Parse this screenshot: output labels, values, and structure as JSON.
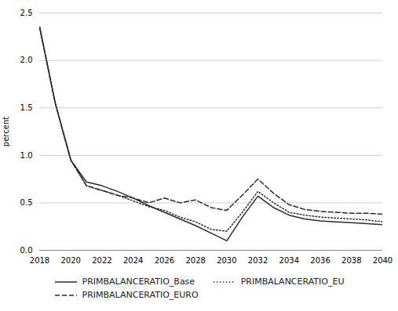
{
  "chart_data": {
    "type": "line",
    "x": [
      2018,
      2019,
      2020,
      2021,
      2022,
      2023,
      2024,
      2025,
      2026,
      2027,
      2028,
      2029,
      2030,
      2031,
      2032,
      2033,
      2034,
      2035,
      2036,
      2037,
      2038,
      2039,
      2040
    ],
    "series": [
      {
        "name": "PRIMBALANCERATIO_Base",
        "color": "#2b2b2b",
        "line_style": "solid",
        "values": [
          2.35,
          1.55,
          0.95,
          0.72,
          0.68,
          0.62,
          0.55,
          0.47,
          0.4,
          0.33,
          0.26,
          0.18,
          0.1,
          0.35,
          0.57,
          0.45,
          0.37,
          0.33,
          0.31,
          0.3,
          0.29,
          0.28,
          0.27
        ]
      },
      {
        "name": "PRIMBALANCERATIO_EU",
        "color": "#2b2b2b",
        "line_style": "dotted",
        "values": [
          2.35,
          1.55,
          0.95,
          0.68,
          0.63,
          0.58,
          0.52,
          0.46,
          0.42,
          0.35,
          0.3,
          0.22,
          0.2,
          0.4,
          0.62,
          0.5,
          0.4,
          0.37,
          0.35,
          0.34,
          0.33,
          0.32,
          0.3
        ]
      },
      {
        "name": "PRIMBALANCERATIO_EURO",
        "color": "#2b2b2b",
        "line_style": "dashed",
        "values": [
          2.35,
          1.55,
          0.95,
          0.68,
          0.63,
          0.58,
          0.55,
          0.5,
          0.55,
          0.5,
          0.53,
          0.45,
          0.42,
          0.58,
          0.75,
          0.6,
          0.48,
          0.43,
          0.41,
          0.4,
          0.39,
          0.39,
          0.38
        ]
      }
    ],
    "ylabel": "percent",
    "xlim": [
      2018,
      2040
    ],
    "xticks": [
      2018,
      2020,
      2022,
      2024,
      2026,
      2028,
      2030,
      2032,
      2034,
      2036,
      2038,
      2040
    ],
    "ylim": [
      0.0,
      2.5
    ],
    "yticks": [
      {
        "value": 0.0,
        "label": "0.0"
      },
      0.5,
      {
        "value": 1.0,
        "label": "1.0"
      },
      1.5,
      {
        "value": 2.0,
        "label": "2.0"
      },
      2.5
    ],
    "grid": true,
    "legend": "bottom"
  }
}
